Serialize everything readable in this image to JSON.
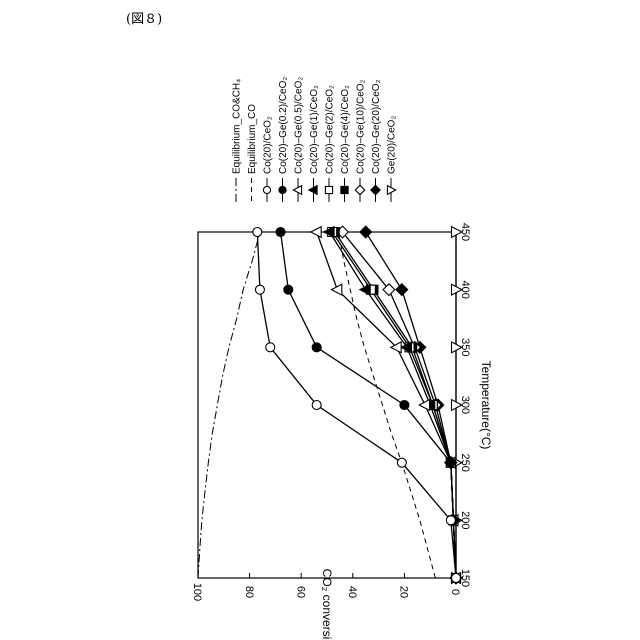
{
  "figure_label": "(図８)",
  "chart_data": {
    "type": "line",
    "xlabel": "Temperature(°C)",
    "ylabel": "CO₂ conversion(%)",
    "xlim": [
      150,
      450
    ],
    "ylim": [
      0,
      100
    ],
    "x_ticks": [
      "150",
      "200",
      "250",
      "300",
      "350",
      "400",
      "450"
    ],
    "y_ticks": [
      "0",
      "20",
      "40",
      "60",
      "80",
      "100"
    ],
    "x": [
      150,
      200,
      250,
      300,
      350,
      400,
      450
    ],
    "equilibrium": [
      {
        "name": "Equilibrium_CO&CH₄",
        "dash": "8,3,2,3",
        "x": [
          150,
          175,
          200,
          225,
          250,
          275,
          300,
          325,
          350,
          375,
          400,
          425,
          450
        ],
        "y": [
          100,
          99.3,
          98.5,
          97.3,
          96,
          94.5,
          92.5,
          90.5,
          88,
          85,
          82.5,
          79,
          76
        ]
      },
      {
        "name": "Equilibrium_CO",
        "dash": "5,4",
        "x": [
          150,
          175,
          200,
          225,
          250,
          275,
          300,
          325,
          350,
          375,
          400,
          425,
          450
        ],
        "y": [
          8,
          11,
          14,
          17.5,
          21,
          25,
          28.5,
          32,
          35.5,
          38.5,
          41,
          43.5,
          45.5
        ]
      }
    ],
    "series": [
      {
        "name": "Co(20)/CeO₂",
        "marker": "circle",
        "fill": "open",
        "values": [
          0,
          2,
          21,
          54,
          72,
          76,
          77
        ]
      },
      {
        "name": "Co(20)–Ge(0.2)/CeO₂",
        "marker": "circle",
        "fill": "filled",
        "values": [
          0,
          1,
          2,
          20,
          54,
          65,
          68
        ]
      },
      {
        "name": "Co(20)–Ge(0.5)/CeO₂",
        "marker": "triangle-left",
        "fill": "open",
        "values": [
          0,
          1,
          2,
          12,
          23,
          46,
          54
        ]
      },
      {
        "name": "Co(20)–Ge(1)/CeO₂",
        "marker": "triangle-left",
        "fill": "filled",
        "values": [
          0,
          1,
          2,
          10,
          19,
          35,
          49
        ]
      },
      {
        "name": "Co(20)–Ge(2)/CeO₂",
        "marker": "square",
        "fill": "open",
        "values": [
          0,
          1,
          2,
          9,
          18,
          33,
          48
        ]
      },
      {
        "name": "Co(20)–Ge(4)/CeO₂",
        "marker": "square",
        "fill": "filled",
        "values": [
          0,
          1,
          2,
          9,
          17,
          32,
          47
        ]
      },
      {
        "name": "Co(20)–Ge(10)/CeO₂",
        "marker": "diamond",
        "fill": "open",
        "values": [
          0,
          1,
          2,
          8,
          16,
          26,
          44
        ]
      },
      {
        "name": "Co(20)–Ge(20)/CeO₂",
        "marker": "diamond",
        "fill": "filled",
        "values": [
          0,
          1,
          2,
          7,
          14,
          21,
          35
        ]
      },
      {
        "name": "Ge(20)/CeO₂",
        "marker": "triangle-right",
        "fill": "open",
        "values": [
          0,
          0,
          0,
          0,
          0,
          0,
          0
        ]
      }
    ],
    "grid": false,
    "legend_position": "top-right",
    "orientation": "rotated 90° clockwise"
  }
}
